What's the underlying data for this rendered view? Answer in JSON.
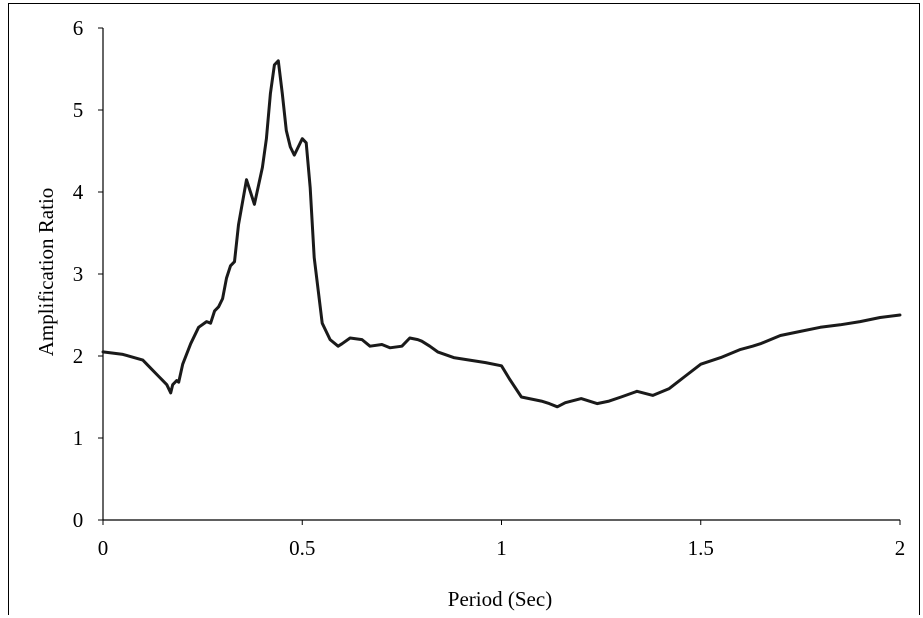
{
  "chart_data": {
    "type": "line",
    "title": "",
    "xlabel": "Period (Sec)",
    "ylabel": "Amplification Ratio",
    "xlim": [
      0,
      2
    ],
    "ylim": [
      0,
      6
    ],
    "xticks": [
      "0",
      "0.5",
      "1",
      "1.5",
      "2"
    ],
    "yticks": [
      "0",
      "1",
      "2",
      "3",
      "4",
      "5",
      "6"
    ],
    "grid": false,
    "legend": "none",
    "line_color": "#1a1a1a",
    "series": [
      {
        "x": [
          0,
          0.05,
          0.1,
          0.12,
          0.14,
          0.15,
          0.16,
          0.17,
          0.175,
          0.185,
          0.19,
          0.2,
          0.22,
          0.24,
          0.26,
          0.27,
          0.28,
          0.29,
          0.3,
          0.31,
          0.32,
          0.33,
          0.34,
          0.36,
          0.38,
          0.4,
          0.41,
          0.42,
          0.43,
          0.44,
          0.45,
          0.46,
          0.47,
          0.48,
          0.49,
          0.5,
          0.51,
          0.52,
          0.53,
          0.55,
          0.57,
          0.59,
          0.6,
          0.62,
          0.65,
          0.67,
          0.7,
          0.72,
          0.75,
          0.77,
          0.79,
          0.8,
          0.82,
          0.84,
          0.88,
          0.92,
          0.96,
          1.0,
          1.02,
          1.05,
          1.1,
          1.12,
          1.14,
          1.16,
          1.2,
          1.24,
          1.27,
          1.3,
          1.34,
          1.38,
          1.42,
          1.46,
          1.5,
          1.55,
          1.6,
          1.63,
          1.65,
          1.7,
          1.75,
          1.8,
          1.85,
          1.9,
          1.95,
          2.0
        ],
        "y": [
          2.05,
          2.02,
          1.95,
          1.85,
          1.75,
          1.7,
          1.65,
          1.55,
          1.65,
          1.7,
          1.68,
          1.9,
          2.15,
          2.35,
          2.42,
          2.4,
          2.55,
          2.6,
          2.7,
          2.95,
          3.1,
          3.15,
          3.6,
          4.15,
          3.85,
          4.3,
          4.65,
          5.2,
          5.55,
          5.6,
          5.2,
          4.75,
          4.55,
          4.45,
          4.55,
          4.65,
          4.6,
          4.05,
          3.2,
          2.4,
          2.2,
          2.12,
          2.15,
          2.22,
          2.2,
          2.12,
          2.14,
          2.1,
          2.12,
          2.22,
          2.2,
          2.18,
          2.12,
          2.05,
          1.98,
          1.95,
          1.92,
          1.88,
          1.72,
          1.5,
          1.45,
          1.42,
          1.38,
          1.43,
          1.48,
          1.42,
          1.45,
          1.5,
          1.57,
          1.52,
          1.6,
          1.75,
          1.9,
          1.98,
          2.08,
          2.12,
          2.15,
          2.25,
          2.3,
          2.35,
          2.38,
          2.42,
          2.47,
          2.5
        ]
      }
    ]
  }
}
